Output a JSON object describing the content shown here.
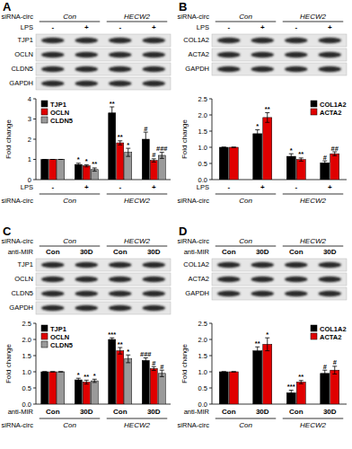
{
  "chart_data": [
    {
      "type": "bar",
      "title": "A",
      "y_label": "Fold change",
      "group_label": "siRNA-circ",
      "groups": [
        "Con",
        "HECW2"
      ],
      "category_label": "LPS",
      "categories": [
        "-",
        "+",
        "-",
        "+"
      ],
      "blot_rows": [
        "TJP1",
        "OCLN",
        "CLDN5",
        "GAPDH"
      ],
      "ylim": [
        0,
        4
      ],
      "yticks": [
        0,
        1,
        2,
        3,
        4
      ],
      "legend": "upper left",
      "series": [
        {
          "name": "TJP1",
          "color": "#000000",
          "values": [
            1,
            0.75,
            3.3,
            2.0
          ],
          "errors": [
            0,
            0.06,
            0.3,
            0.35
          ],
          "significance": [
            null,
            "*",
            "**",
            "#"
          ]
        },
        {
          "name": "OCLN",
          "color": "#e00000",
          "values": [
            1,
            0.68,
            1.82,
            0.95
          ],
          "errors": [
            0,
            0.05,
            0.1,
            0.08
          ],
          "significance": [
            null,
            "*",
            "**",
            "#"
          ]
        },
        {
          "name": "CLDN5",
          "color": "#9a9a9a",
          "values": [
            1,
            0.5,
            1.35,
            1.2
          ],
          "errors": [
            0,
            0.08,
            0.2,
            0.15
          ],
          "significance": [
            null,
            "**",
            "*",
            "###"
          ]
        }
      ]
    },
    {
      "type": "bar",
      "title": "B",
      "y_label": "Fold change",
      "group_label": "siRNA-circ",
      "groups": [
        "Con",
        "HECW2"
      ],
      "category_label": "LPS",
      "categories": [
        "-",
        "+",
        "-",
        "+"
      ],
      "blot_rows": [
        "COL1A2",
        "ACTA2",
        "GAPDH"
      ],
      "ylim": [
        0,
        2.5
      ],
      "yticks": [
        {
          "value": 0,
          "label": "0.0"
        },
        {
          "value": 0.5,
          "label": "0.5"
        },
        {
          "value": 1,
          "label": "1.0"
        },
        {
          "value": 1.5,
          "label": "1.5"
        },
        {
          "value": 2,
          "label": "2.0"
        },
        2.5
      ],
      "legend": "upper right",
      "series": [
        {
          "name": "COL1A2",
          "color": "#000000",
          "values": [
            1,
            1.42,
            0.72,
            0.52
          ],
          "errors": [
            0,
            0.12,
            0.08,
            0.06
          ],
          "significance": [
            null,
            "*",
            "*",
            "#"
          ]
        },
        {
          "name": "ACTA2",
          "color": "#e00000",
          "values": [
            1,
            1.92,
            0.62,
            0.8
          ],
          "errors": [
            0,
            0.15,
            0.05,
            0.06
          ],
          "significance": [
            null,
            "**",
            "**",
            "##"
          ]
        }
      ]
    },
    {
      "type": "bar",
      "title": "C",
      "y_label": "Fold change",
      "group_label": "siRNA-circ",
      "groups": [
        "Con",
        "HECW2"
      ],
      "category_label": "anti-MIR",
      "categories": [
        "Con",
        "30D",
        "Con",
        "30D"
      ],
      "blot_rows": [
        "TJP1",
        "OCLN",
        "CLDN5",
        "GAPDH"
      ],
      "ylim": [
        0,
        2.5
      ],
      "yticks": [
        {
          "value": 0,
          "label": "0.0"
        },
        {
          "value": 0.5,
          "label": "0.5"
        },
        {
          "value": 1,
          "label": "1.0"
        },
        {
          "value": 1.5,
          "label": "1.5"
        },
        {
          "value": 2,
          "label": "2.0"
        },
        2.5
      ],
      "legend": "upper left",
      "series": [
        {
          "name": "TJP1",
          "color": "#000000",
          "values": [
            1,
            0.75,
            2.0,
            1.35
          ],
          "errors": [
            0,
            0.05,
            0.05,
            0.08
          ],
          "significance": [
            null,
            "*",
            "***",
            "###"
          ]
        },
        {
          "name": "OCLN",
          "color": "#e00000",
          "values": [
            1,
            0.68,
            1.65,
            1.1
          ],
          "errors": [
            0,
            0.06,
            0.1,
            0.06
          ],
          "significance": [
            null,
            "**",
            "**",
            "#"
          ]
        },
        {
          "name": "CLDN5",
          "color": "#9a9a9a",
          "values": [
            1,
            0.72,
            1.4,
            0.95
          ],
          "errors": [
            0,
            0.05,
            0.12,
            0.1
          ],
          "significance": [
            null,
            "*",
            "*",
            "#"
          ]
        }
      ]
    },
    {
      "type": "bar",
      "title": "D",
      "y_label": "Fold change",
      "group_label": "siRNA-circ",
      "groups": [
        "Con",
        "HECW2"
      ],
      "category_label": "anti-MIR",
      "categories": [
        "Con",
        "30D",
        "Con",
        "30D"
      ],
      "blot_rows": [
        "COL1A2",
        "ACTA2",
        "GAPDH"
      ],
      "ylim": [
        0,
        2.5
      ],
      "yticks": [
        {
          "value": 0,
          "label": "0.0"
        },
        {
          "value": 0.5,
          "label": "0.5"
        },
        {
          "value": 1,
          "label": "1.0"
        },
        {
          "value": 1.5,
          "label": "1.5"
        },
        {
          "value": 2,
          "label": "2.0"
        },
        2.5
      ],
      "legend": "upper right",
      "series": [
        {
          "name": "COL1A2",
          "color": "#000000",
          "values": [
            1,
            1.65,
            0.35,
            0.95
          ],
          "errors": [
            0,
            0.12,
            0.08,
            0.1
          ],
          "significance": [
            null,
            "**",
            "***",
            "#"
          ]
        },
        {
          "name": "ACTA2",
          "color": "#e00000",
          "values": [
            1,
            1.85,
            0.68,
            1.05
          ],
          "errors": [
            0,
            0.2,
            0.05,
            0.12
          ],
          "significance": [
            null,
            "*",
            "**",
            "#"
          ]
        }
      ]
    }
  ]
}
